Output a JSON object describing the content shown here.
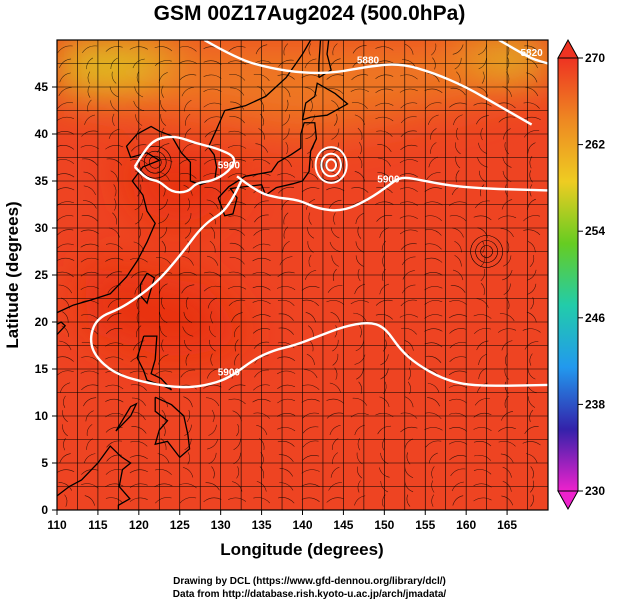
{
  "title": "GSM 00Z17Aug2024 (500.0hPa)",
  "credits": {
    "line1": "Drawing by DCL (https://www.gfd-dennou.org/library/dcl/)",
    "line2": "Data from http://database.rish.kyoto-u.ac.jp/arch/jmadata/"
  },
  "colors": {
    "ocean_field": "#ee4422",
    "warm_core": "#e83010",
    "north_field": "#ee7722",
    "cool_ne": "#ddcc22",
    "contour": "#ffffff",
    "coastline": "#000000"
  },
  "chart_data": {
    "type": "heatmap",
    "xlabel": "Longitude (degrees)",
    "ylabel": "Latitude (degrees)",
    "xlim": [
      110,
      170
    ],
    "ylim": [
      0,
      50
    ],
    "xticks": [
      "110",
      "115",
      "120",
      "125",
      "130",
      "135",
      "140",
      "145",
      "150",
      "155",
      "160",
      "165"
    ],
    "yticks": [
      "0",
      "5",
      "10",
      "15",
      "20",
      "25",
      "30",
      "35",
      "40",
      "45"
    ],
    "grid": true,
    "colorbar": {
      "ticks": [
        "230",
        "238",
        "246",
        "254",
        "262",
        "270"
      ],
      "range": [
        230,
        270
      ],
      "colors": [
        "#ee22cc",
        "#3322aa",
        "#2299ee",
        "#22ccaa",
        "#66cc22",
        "#eecc22",
        "#ee8822",
        "#ee3322"
      ]
    },
    "contours": [
      {
        "label": "5880",
        "points": [
          [
            128,
            50
          ],
          [
            132,
            48
          ],
          [
            136,
            47
          ],
          [
            140,
            46.5
          ],
          [
            144,
            46.5
          ],
          [
            148,
            47.2
          ],
          [
            152,
            47.5
          ],
          [
            156,
            46.5
          ],
          [
            160,
            45
          ],
          [
            164,
            43
          ],
          [
            168,
            41
          ]
        ]
      },
      {
        "label": "5900",
        "points": [
          [
            119.5,
            36.5
          ],
          [
            120.5,
            38
          ],
          [
            122,
            39.5
          ],
          [
            124.5,
            39.8
          ],
          [
            127,
            39
          ],
          [
            129.5,
            38.5
          ],
          [
            132,
            37.5
          ],
          [
            131,
            36
          ],
          [
            129,
            35
          ],
          [
            127,
            34.8
          ],
          [
            126,
            33.8
          ],
          [
            124,
            33.8
          ],
          [
            122.5,
            35
          ],
          [
            121,
            35.2
          ],
          [
            119.5,
            36.5
          ]
        ]
      },
      {
        "label": "5900",
        "points": [
          [
            132,
            35.5
          ],
          [
            134.5,
            33.8
          ],
          [
            137,
            33.2
          ],
          [
            139.5,
            33
          ],
          [
            142,
            32
          ],
          [
            145,
            31.8
          ],
          [
            148,
            33
          ],
          [
            150.5,
            34.5
          ],
          [
            152,
            35.5
          ],
          [
            155,
            35
          ],
          [
            158,
            34.5
          ],
          [
            162,
            34.2
          ],
          [
            166,
            34.1
          ],
          [
            170,
            34
          ]
        ]
      },
      {
        "label": "5900",
        "points": [
          [
            132.5,
            35
          ],
          [
            131,
            32
          ],
          [
            128,
            30.5
          ],
          [
            125,
            27
          ],
          [
            122,
            24
          ],
          [
            118,
            21.5
          ],
          [
            115,
            20.5
          ],
          [
            114,
            18.5
          ],
          [
            114.5,
            16.5
          ],
          [
            117,
            14.5
          ],
          [
            121,
            13.5
          ],
          [
            125,
            13
          ],
          [
            128,
            13.2
          ],
          [
            131,
            14
          ],
          [
            134,
            16
          ],
          [
            136.5,
            17
          ],
          [
            139,
            17.5
          ],
          [
            142,
            18.5
          ],
          [
            145,
            19.5
          ],
          [
            148,
            20
          ],
          [
            150,
            19.5
          ],
          [
            152,
            17
          ],
          [
            154,
            15.5
          ],
          [
            157,
            14
          ],
          [
            160,
            13.3
          ],
          [
            164,
            13.2
          ],
          [
            170,
            13.3
          ]
        ]
      },
      {
        "label": "5820",
        "points": [
          [
            164,
            50
          ],
          [
            166,
            49
          ],
          [
            168,
            48
          ],
          [
            170,
            47.5
          ]
        ]
      }
    ],
    "closed_low": {
      "lon": 143.5,
      "lat": 36.7,
      "rings_deg": [
        0.6,
        1.2,
        1.9
      ]
    },
    "anticyclone": {
      "lon": 162.5,
      "lat": 27.5
    }
  }
}
